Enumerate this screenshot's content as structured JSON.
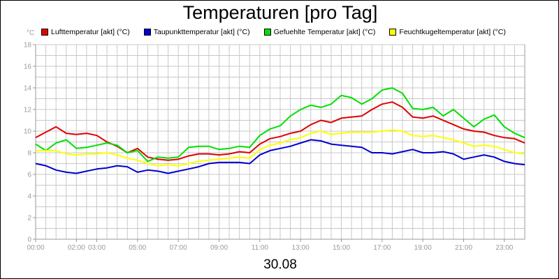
{
  "chart_data": {
    "type": "line",
    "title": "Temperaturen [pro Tag]",
    "y_unit": "°C",
    "xlabel": "30.08",
    "ylim": [
      0,
      18
    ],
    "y_ticks": [
      0,
      2,
      4,
      6,
      8,
      10,
      12,
      14,
      16,
      18
    ],
    "xlim": [
      0,
      24
    ],
    "x_ticks": [
      {
        "t": 0,
        "label": "00:00"
      },
      {
        "t": 2,
        "label": "02:00"
      },
      {
        "t": 3,
        "label": "03:00"
      },
      {
        "t": 5,
        "label": "05:00"
      },
      {
        "t": 7,
        "label": "07:00"
      },
      {
        "t": 9,
        "label": "09:00"
      },
      {
        "t": 11,
        "label": "11:00"
      },
      {
        "t": 13,
        "label": "13:00"
      },
      {
        "t": 15,
        "label": "15:00"
      },
      {
        "t": 17,
        "label": "17:00"
      },
      {
        "t": 19,
        "label": "19:00"
      },
      {
        "t": 21,
        "label": "21:00"
      },
      {
        "t": 23,
        "label": "23:00"
      }
    ],
    "grid": true,
    "legend_position": "top",
    "x": [
      0,
      0.5,
      1,
      1.5,
      2,
      2.5,
      3,
      3.5,
      4,
      4.5,
      5,
      5.5,
      6,
      6.5,
      7,
      7.5,
      8,
      8.5,
      9,
      9.5,
      10,
      10.5,
      11,
      11.5,
      12,
      12.5,
      13,
      13.5,
      14,
      14.5,
      15,
      15.5,
      16,
      16.5,
      17,
      17.5,
      18,
      18.5,
      19,
      19.5,
      20,
      20.5,
      21,
      21.5,
      22,
      22.5,
      23,
      23.5,
      24
    ],
    "series": [
      {
        "name": "Lufttemperatur [akt] (°C)",
        "color": "#e00000",
        "values": [
          9.4,
          9.9,
          10.4,
          9.8,
          9.7,
          9.8,
          9.6,
          9.0,
          8.6,
          8.0,
          8.4,
          7.6,
          7.4,
          7.3,
          7.4,
          7.7,
          7.9,
          7.9,
          7.8,
          7.9,
          8.1,
          8.0,
          8.8,
          9.3,
          9.5,
          9.8,
          10.0,
          10.6,
          11.0,
          10.8,
          11.2,
          11.3,
          11.4,
          12.0,
          12.5,
          12.7,
          12.2,
          11.3,
          11.2,
          11.4,
          11.0,
          10.6,
          10.2,
          10.0,
          9.9,
          9.6,
          9.4,
          9.3,
          8.9
        ]
      },
      {
        "name": "Taupunkttemperatur [akt] (°C)",
        "color": "#0000d0",
        "values": [
          7.0,
          6.8,
          6.4,
          6.2,
          6.1,
          6.3,
          6.5,
          6.6,
          6.8,
          6.7,
          6.2,
          6.4,
          6.3,
          6.1,
          6.3,
          6.5,
          6.7,
          7.0,
          7.1,
          7.1,
          7.1,
          7.0,
          7.8,
          8.2,
          8.4,
          8.6,
          8.9,
          9.2,
          9.1,
          8.8,
          8.7,
          8.6,
          8.5,
          8.0,
          8.0,
          7.9,
          8.1,
          8.3,
          8.0,
          8.0,
          8.1,
          7.9,
          7.4,
          7.6,
          7.8,
          7.6,
          7.2,
          7.0,
          6.9
        ]
      },
      {
        "name": "Gefuehlte Temperatur [akt] (°C)",
        "color": "#00e000",
        "values": [
          8.8,
          8.2,
          8.9,
          9.2,
          8.4,
          8.5,
          8.7,
          8.9,
          8.7,
          8.0,
          8.2,
          7.2,
          7.6,
          7.5,
          7.6,
          8.5,
          8.6,
          8.6,
          8.3,
          8.4,
          8.6,
          8.5,
          9.6,
          10.2,
          10.5,
          11.4,
          12.0,
          12.4,
          12.2,
          12.5,
          13.3,
          13.1,
          12.5,
          13.0,
          13.8,
          14.0,
          13.5,
          12.1,
          12.0,
          12.2,
          11.4,
          12.0,
          11.2,
          10.4,
          11.1,
          11.5,
          10.4,
          9.8,
          9.4
        ]
      },
      {
        "name": "Feuchtkugeltemperatur [akt] (°C)",
        "color": "#ffff00",
        "values": [
          8.2,
          8.2,
          8.2,
          7.9,
          7.8,
          7.9,
          7.9,
          8.0,
          7.8,
          7.5,
          7.3,
          7.0,
          6.8,
          6.9,
          6.8,
          7.0,
          7.2,
          7.3,
          7.4,
          7.5,
          7.6,
          7.5,
          8.3,
          8.7,
          8.9,
          9.2,
          9.4,
          9.8,
          10.0,
          9.7,
          9.8,
          9.9,
          9.9,
          9.9,
          10.0,
          10.1,
          10.0,
          9.6,
          9.5,
          9.6,
          9.4,
          9.2,
          8.9,
          8.6,
          8.7,
          8.6,
          8.3,
          8.0,
          7.9
        ]
      }
    ]
  }
}
